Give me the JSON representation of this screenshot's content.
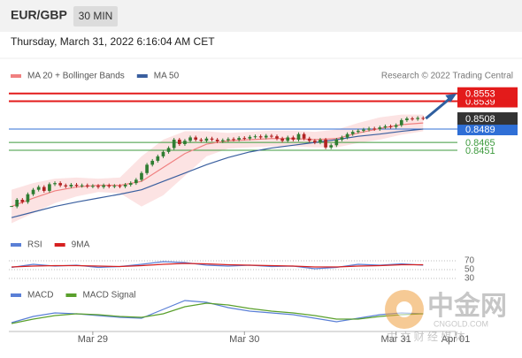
{
  "header": {
    "symbol": "EUR/GBP",
    "interval": "30 MIN",
    "timestamp": "Thursday, March 31, 2022 6:16:04 AM CET"
  },
  "chart_data": [
    {
      "type": "candlestick",
      "credit": "Research © 2022 Trading Central",
      "ylim": [
        0.8316,
        0.857
      ],
      "up_color": "#2f7d32",
      "down_color": "#b22222",
      "closes": [
        0.835,
        0.8362,
        0.8358,
        0.8372,
        0.838,
        0.8385,
        0.8378,
        0.839,
        0.8392,
        0.8388,
        0.8386,
        0.8389,
        0.8387,
        0.8388,
        0.8386,
        0.8387,
        0.8385,
        0.8388,
        0.8386,
        0.8387,
        0.8386,
        0.8389,
        0.8392,
        0.8398,
        0.841,
        0.8425,
        0.8432,
        0.844,
        0.8448,
        0.8455,
        0.847,
        0.8462,
        0.8468,
        0.8474,
        0.847,
        0.8468,
        0.8472,
        0.847,
        0.8467,
        0.8469,
        0.8471,
        0.847,
        0.8473,
        0.8472,
        0.8475,
        0.8476,
        0.8474,
        0.8477,
        0.8476,
        0.8472,
        0.8468,
        0.8474,
        0.847,
        0.848,
        0.8472,
        0.8468,
        0.8465,
        0.847,
        0.8456,
        0.846,
        0.847,
        0.8474,
        0.848,
        0.8484,
        0.8486,
        0.8488,
        0.849,
        0.8489,
        0.8492,
        0.8494,
        0.8493,
        0.8496,
        0.8505,
        0.8508,
        0.8507,
        0.8509,
        0.8508
      ],
      "series": [
        {
          "name": "MA 20 + Bollinger Bands",
          "color": "#f08080",
          "band_color": "#fbdcdc",
          "x": [
            0,
            4,
            8,
            12,
            16,
            20,
            24,
            28,
            32,
            36,
            40,
            44,
            48,
            52,
            56,
            60,
            64,
            68,
            72,
            76
          ],
          "values": [
            0.835,
            0.8365,
            0.8378,
            0.8385,
            0.8388,
            0.8388,
            0.8395,
            0.842,
            0.8445,
            0.8462,
            0.8468,
            0.847,
            0.8472,
            0.8472,
            0.847,
            0.8472,
            0.8482,
            0.849,
            0.8497,
            0.85
          ],
          "upper": [
            0.838,
            0.8392,
            0.84,
            0.8402,
            0.84,
            0.8402,
            0.844,
            0.847,
            0.8485,
            0.8485,
            0.8482,
            0.8484,
            0.8486,
            0.8486,
            0.8484,
            0.8488,
            0.85,
            0.851,
            0.8515,
            0.8515
          ],
          "lower": [
            0.832,
            0.8338,
            0.8356,
            0.8368,
            0.8376,
            0.8374,
            0.835,
            0.837,
            0.8405,
            0.844,
            0.8454,
            0.8456,
            0.8458,
            0.8458,
            0.8456,
            0.8456,
            0.8464,
            0.847,
            0.8479,
            0.8485
          ]
        },
        {
          "name": "MA 50",
          "color": "#3a5f9f",
          "x": [
            0,
            4,
            8,
            12,
            16,
            20,
            24,
            28,
            32,
            36,
            40,
            44,
            48,
            52,
            56,
            60,
            64,
            68,
            72,
            76
          ],
          "values": [
            0.833,
            0.834,
            0.835,
            0.8358,
            0.8365,
            0.8372,
            0.838,
            0.8395,
            0.841,
            0.8425,
            0.8438,
            0.8448,
            0.8455,
            0.846,
            0.8465,
            0.847,
            0.8476,
            0.848,
            0.8485,
            0.8489
          ]
        }
      ],
      "levels": [
        {
          "value": 0.8553,
          "color": "#e31b1b",
          "boxed": true
        },
        {
          "value": 0.8539,
          "color": "#e31b1b",
          "boxed": true
        },
        {
          "value": 0.8508,
          "color": "#333333",
          "boxed": true
        },
        {
          "value": 0.8489,
          "color": "#2f6fd6",
          "boxed": true
        },
        {
          "value": 0.8465,
          "color": "#3d9a3d",
          "boxed": false
        },
        {
          "value": 0.8451,
          "color": "#3d9a3d",
          "boxed": false
        }
      ]
    },
    {
      "type": "line",
      "ylim": [
        20,
        80
      ],
      "yticks": [
        70,
        50,
        30
      ],
      "series": [
        {
          "name": "RSI",
          "color": "#5a7fd6",
          "x": [
            0,
            4,
            8,
            12,
            16,
            20,
            24,
            28,
            32,
            36,
            40,
            44,
            48,
            52,
            56,
            60,
            64,
            68,
            72,
            76
          ],
          "values": [
            55,
            62,
            58,
            60,
            55,
            57,
            62,
            68,
            66,
            60,
            58,
            60,
            57,
            58,
            52,
            55,
            62,
            60,
            63,
            60
          ]
        },
        {
          "name": "9MA",
          "color": "#d62020",
          "x": [
            0,
            4,
            8,
            12,
            16,
            20,
            24,
            28,
            32,
            36,
            40,
            44,
            48,
            52,
            56,
            60,
            64,
            68,
            72,
            76
          ],
          "values": [
            56,
            58,
            59,
            59,
            58,
            57,
            59,
            62,
            64,
            63,
            61,
            60,
            59,
            58,
            56,
            56,
            58,
            59,
            61,
            61
          ]
        }
      ]
    },
    {
      "type": "line",
      "ylim": [
        -0.0015,
        0.0025
      ],
      "xlim": [
        -0.5,
        82
      ],
      "xticks": [
        {
          "value": 15,
          "label": "Mar 29"
        },
        {
          "value": 43,
          "label": "Mar 30"
        },
        {
          "value": 71,
          "label": "Mar 31"
        },
        {
          "value": 82,
          "label": "Apr 01"
        }
      ],
      "series": [
        {
          "name": "MACD",
          "color": "#5a7fd6",
          "x": [
            0,
            4,
            8,
            12,
            16,
            20,
            24,
            28,
            32,
            36,
            40,
            44,
            48,
            52,
            56,
            60,
            64,
            68,
            72,
            76
          ],
          "values": [
            -0.0005,
            0.0002,
            0.0006,
            0.0005,
            0.0003,
            0.0001,
            0,
            0.001,
            0.002,
            0.0018,
            0.0012,
            0.0008,
            0.0006,
            0.0004,
            0,
            -0.0004,
            0,
            0.0004,
            0.0006,
            0.0005
          ]
        },
        {
          "name": "MACD Signal",
          "color": "#5aa02c",
          "x": [
            0,
            4,
            8,
            12,
            16,
            20,
            24,
            28,
            32,
            36,
            40,
            44,
            48,
            52,
            56,
            60,
            64,
            68,
            72,
            76
          ],
          "values": [
            -0.0006,
            -0.0001,
            0.0003,
            0.0005,
            0.0004,
            0.0002,
            0.0001,
            0.0005,
            0.0013,
            0.0017,
            0.0015,
            0.0011,
            0.0008,
            0.0006,
            0.0003,
            -0.0001,
            -0.0001,
            0.0002,
            0.0004,
            0.0005
          ]
        }
      ]
    }
  ],
  "watermark": {
    "brand": "中金网",
    "site": "CNGOLD.COM",
    "tagline": "中 文 财 经 媒 体"
  }
}
